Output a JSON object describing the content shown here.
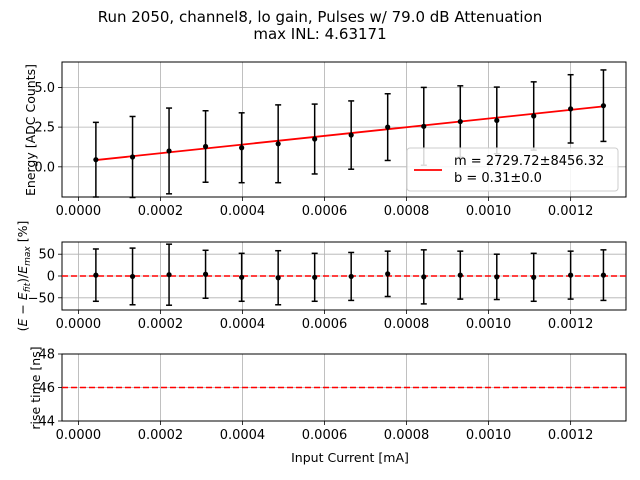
{
  "figure": {
    "title_line1": "Run 2050, channel8, lo gain, Pulses w/ 79.0 dB Attenuation",
    "title_line2": "max INL: 4.63171"
  },
  "colors": {
    "fit_line": "#ff0000",
    "points": "#000000",
    "grid": "#b0b0b0",
    "zero_line": "#ff0000",
    "rise_line": "#ff0000"
  },
  "chart_data": [
    {
      "type": "scatter",
      "name": "energy",
      "ylabel": "Energy [ADC Counts]",
      "xlabel": "",
      "xlim": [
        -4e-05,
        0.001335
      ],
      "ylim": [
        -1.9,
        6.6
      ],
      "x_ticks": [
        "0.0000",
        "0.0002",
        "0.0004",
        "0.0006",
        "0.0008",
        "0.0010",
        "0.0012"
      ],
      "x_tick_values": [
        0,
        0.0002,
        0.0004,
        0.0006,
        0.0008,
        0.001,
        0.0012
      ],
      "y_ticks": [
        "0.0",
        "2.5",
        "5.0"
      ],
      "y_tick_values": [
        0,
        2.5,
        5
      ],
      "grid": true,
      "x": [
        4.26e-05,
        0.000132,
        0.000221,
        0.00031,
        0.000398,
        0.000487,
        0.000576,
        0.000665,
        0.000754,
        0.000842,
        0.000931,
        0.00102,
        0.00111,
        0.0012,
        0.00128
      ],
      "y": [
        0.45,
        0.62,
        1.0,
        1.28,
        1.2,
        1.45,
        1.75,
        2.0,
        2.5,
        2.55,
        2.85,
        2.92,
        3.2,
        3.65,
        3.85
      ],
      "yerr": [
        2.35,
        2.55,
        2.7,
        2.25,
        2.2,
        2.45,
        2.2,
        2.15,
        2.1,
        2.45,
        2.25,
        2.1,
        2.15,
        2.15,
        2.25
      ],
      "fit": {
        "m": 2729.72,
        "b": 0.31
      },
      "legend": {
        "position": "lower-right",
        "line1": "m = 2729.72±8456.32",
        "line2": "b = 0.31±0.0"
      }
    },
    {
      "type": "scatter",
      "name": "residuals",
      "ylabel": "(E − E_fit)/E_max [%]",
      "xlabel": "",
      "xlim": [
        -4e-05,
        0.001335
      ],
      "ylim": [
        -78,
        78
      ],
      "x_ticks": [
        "0.0000",
        "0.0002",
        "0.0004",
        "0.0006",
        "0.0008",
        "0.0010",
        "0.0012"
      ],
      "x_tick_values": [
        0,
        0.0002,
        0.0004,
        0.0006,
        0.0008,
        0.001,
        0.0012
      ],
      "y_ticks": [
        "−50",
        "0",
        "50"
      ],
      "y_tick_values": [
        -50,
        0,
        50
      ],
      "grid": true,
      "x": [
        4.26e-05,
        0.000132,
        0.000221,
        0.00031,
        0.000398,
        0.000487,
        0.000576,
        0.000665,
        0.000754,
        0.000842,
        0.000931,
        0.00102,
        0.00111,
        0.0012,
        0.00128
      ],
      "y": [
        2,
        -1,
        3,
        4,
        -3,
        -4,
        -3,
        -1,
        5,
        -2,
        2,
        -2,
        -3,
        2,
        2
      ],
      "yerr": [
        60,
        65,
        70,
        55,
        55,
        62,
        55,
        55,
        52,
        62,
        55,
        52,
        55,
        55,
        58
      ],
      "reference_line": 0
    },
    {
      "type": "line",
      "name": "rise_time",
      "ylabel": "rise time [ns]",
      "xlabel": "Input Current [mA]",
      "xlim": [
        -4e-05,
        0.001335
      ],
      "ylim": [
        44,
        48
      ],
      "x_ticks": [
        "0.0000",
        "0.0002",
        "0.0004",
        "0.0006",
        "0.0008",
        "0.0010",
        "0.0012"
      ],
      "x_tick_values": [
        0,
        0.0002,
        0.0004,
        0.0006,
        0.0008,
        0.001,
        0.0012
      ],
      "y_ticks": [
        "44",
        "46",
        "48"
      ],
      "y_tick_values": [
        44,
        46,
        48
      ],
      "grid": true,
      "value": 46
    }
  ]
}
